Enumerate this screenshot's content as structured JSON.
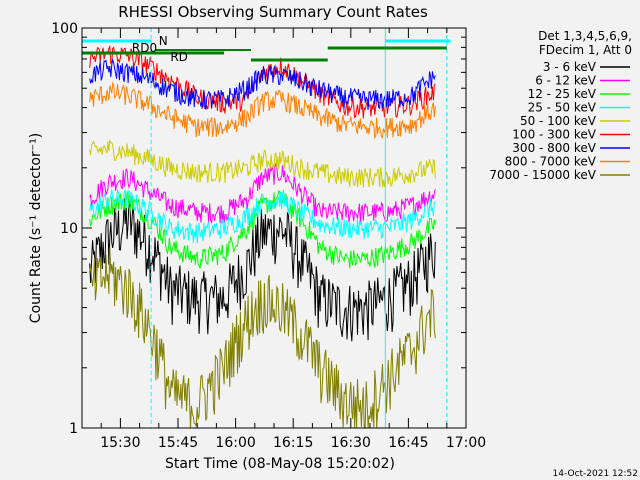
{
  "chart_data": {
    "type": "line",
    "title": "RHESSI Observing Summary Count Rates",
    "xlabel": "Start Time (08-May-08 15:20:02)",
    "ylabel": "Count Rate (s⁻¹ detector⁻¹)",
    "y_scale": "log",
    "ylim": [
      1,
      100
    ],
    "xlim": [
      "15:20",
      "17:00"
    ],
    "x_ticks": [
      "15:30",
      "15:45",
      "16:00",
      "16:15",
      "16:30",
      "16:45",
      "17:00"
    ],
    "y_ticks": [
      "1",
      "10",
      "100"
    ],
    "legend_header": [
      "Det 1,3,4,5,6,9,",
      "FDecim 1, Att 0"
    ],
    "legend_position": "right",
    "flag_labels": [
      "RD0",
      "N",
      "RD"
    ],
    "timestamp": "14-Oct-2021 12:52",
    "series": [
      {
        "name": "3 - 6 keV",
        "color": "#000000",
        "x": [
          "15:22",
          "15:27",
          "15:32",
          "15:38",
          "15:43",
          "15:50",
          "15:57",
          "16:03",
          "16:07",
          "16:12",
          "16:17",
          "16:22",
          "16:28",
          "16:34",
          "16:40",
          "16:46",
          "16:52"
        ],
        "values": [
          6.0,
          9.0,
          11.0,
          8.0,
          5.0,
          4.5,
          4.5,
          6.5,
          9.5,
          10.0,
          7.0,
          4.5,
          4.0,
          4.0,
          4.5,
          5.5,
          8.0
        ]
      },
      {
        "name": "6 - 12 keV",
        "color": "#ff00ff",
        "x": [
          "15:22",
          "15:27",
          "15:32",
          "15:38",
          "15:43",
          "15:50",
          "15:57",
          "16:03",
          "16:07",
          "16:12",
          "16:17",
          "16:22",
          "16:28",
          "16:34",
          "16:40",
          "16:46",
          "16:52"
        ],
        "values": [
          14,
          17,
          18,
          15,
          13,
          12,
          12,
          14,
          18,
          19,
          15,
          12,
          12,
          12,
          12,
          13,
          15
        ]
      },
      {
        "name": "12 - 25 keV",
        "color": "#00ff00",
        "x": [
          "15:22",
          "15:27",
          "15:32",
          "15:38",
          "15:43",
          "15:50",
          "15:57",
          "16:03",
          "16:07",
          "16:12",
          "16:17",
          "16:22",
          "16:28",
          "16:34",
          "16:40",
          "16:46",
          "16:52"
        ],
        "values": [
          11,
          13,
          14,
          11,
          8,
          7,
          7.5,
          10,
          13,
          14,
          11,
          8,
          7,
          7,
          7.5,
          8.5,
          10.5
        ]
      },
      {
        "name": "25 - 50 keV",
        "color": "#00ffff",
        "x": [
          "15:22",
          "15:27",
          "15:32",
          "15:38",
          "15:43",
          "15:50",
          "15:57",
          "16:03",
          "16:07",
          "16:12",
          "16:17",
          "16:22",
          "16:28",
          "16:34",
          "16:40",
          "16:46",
          "16:52"
        ],
        "values": [
          12,
          14,
          14,
          12,
          10,
          9.5,
          10,
          11.5,
          13.5,
          14,
          12,
          10.5,
          10,
          10,
          10,
          11,
          13
        ]
      },
      {
        "name": "50 - 100 keV",
        "color": "#cccc00",
        "x": [
          "15:22",
          "15:27",
          "15:32",
          "15:38",
          "15:43",
          "15:50",
          "15:57",
          "16:03",
          "16:07",
          "16:12",
          "16:17",
          "16:22",
          "16:28",
          "16:34",
          "16:40",
          "16:46",
          "16:52"
        ],
        "values": [
          24,
          25,
          24,
          22,
          20,
          19,
          19,
          20,
          22,
          22,
          20,
          19,
          18,
          18,
          18,
          19,
          20
        ]
      },
      {
        "name": "100 - 300 keV",
        "color": "#ff0000",
        "x": [
          "15:22",
          "15:27",
          "15:32",
          "15:38",
          "15:43",
          "15:50",
          "15:57",
          "16:03",
          "16:07",
          "16:12",
          "16:17",
          "16:22",
          "16:28",
          "16:34",
          "16:40",
          "16:46",
          "16:52"
        ],
        "values": [
          70,
          75,
          73,
          64,
          55,
          45,
          42,
          44,
          60,
          65,
          55,
          47,
          41,
          40,
          40,
          42,
          48
        ]
      },
      {
        "name": "300 - 800 keV",
        "color": "#0000ff",
        "x": [
          "15:22",
          "15:27",
          "15:32",
          "15:38",
          "15:43",
          "15:50",
          "15:57",
          "16:03",
          "16:07",
          "16:12",
          "16:17",
          "16:22",
          "16:28",
          "16:34",
          "16:40",
          "16:46",
          "16:52"
        ],
        "values": [
          58,
          63,
          60,
          55,
          49,
          44,
          44,
          50,
          58,
          58,
          54,
          49,
          45,
          44,
          44,
          46,
          58
        ]
      },
      {
        "name": "800 - 7000 keV",
        "color": "#ff8000",
        "x": [
          "15:22",
          "15:27",
          "15:32",
          "15:38",
          "15:43",
          "15:50",
          "15:57",
          "16:03",
          "16:07",
          "16:12",
          "16:17",
          "16:22",
          "16:28",
          "16:34",
          "16:40",
          "16:46",
          "16:52"
        ],
        "values": [
          44,
          48,
          46,
          41,
          36,
          32,
          32,
          36,
          43,
          44,
          40,
          36,
          33,
          32,
          32,
          33,
          40
        ]
      },
      {
        "name": "7000 - 15000 keV",
        "color": "#808000",
        "x": [
          "15:22",
          "15:27",
          "15:32",
          "15:38",
          "15:43",
          "15:50",
          "15:57",
          "16:03",
          "16:07",
          "16:12",
          "16:17",
          "16:22",
          "16:28",
          "16:34",
          "16:40",
          "16:46",
          "16:52"
        ],
        "values": [
          5.0,
          6.0,
          5.0,
          3.0,
          1.5,
          1.3,
          2.0,
          3.5,
          4.5,
          4.0,
          3.0,
          2.0,
          1.4,
          1.3,
          1.8,
          2.5,
          4.0
        ]
      }
    ]
  }
}
